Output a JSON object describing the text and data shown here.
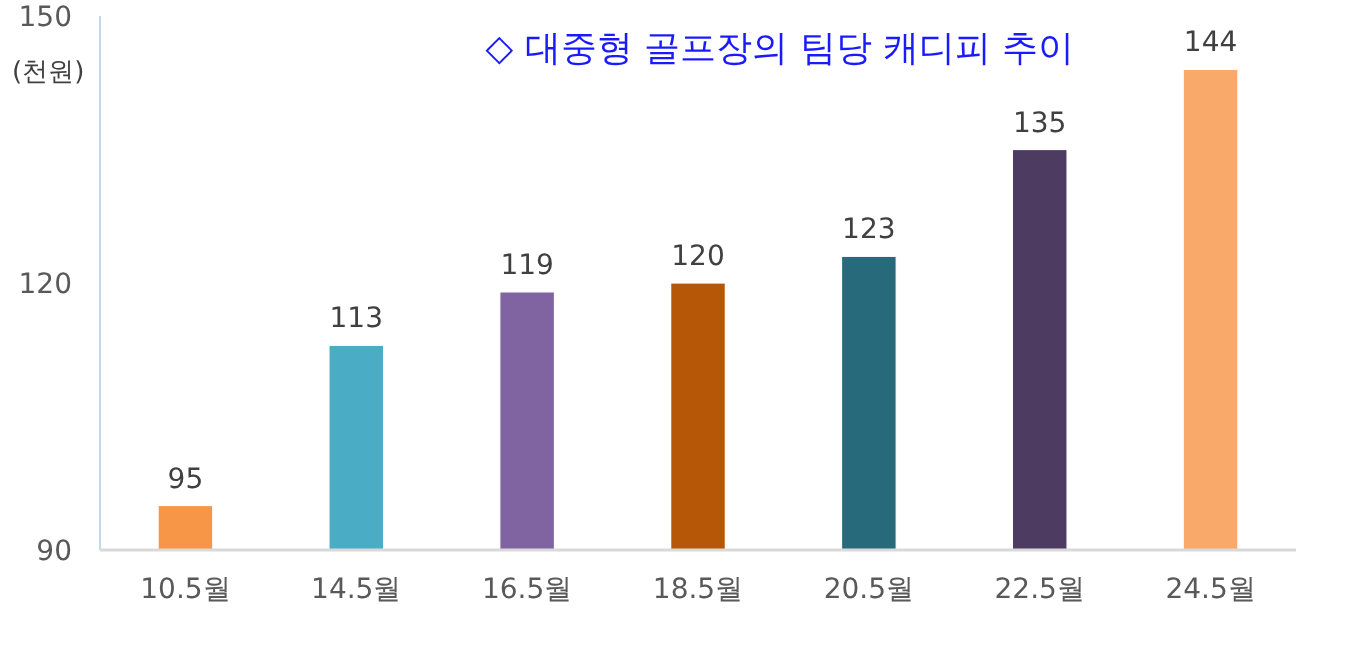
{
  "chart_data": {
    "type": "bar",
    "title": "◇ 대중형 골프장의 팀당 캐디피 추이",
    "ylabel": "(천원)",
    "categories": [
      "10.5월",
      "14.5월",
      "16.5월",
      "18.5월",
      "20.5월",
      "22.5월",
      "24.5월"
    ],
    "values": [
      95,
      113,
      119,
      120,
      123,
      135,
      144
    ],
    "colors": [
      "#f79646",
      "#4bacc6",
      "#8064a2",
      "#b65708",
      "#276a7c",
      "#4d3b62",
      "#f9aa6b"
    ],
    "ylim": [
      90,
      150
    ],
    "yticks": [
      90,
      120,
      150
    ],
    "data_labels": true,
    "grid": false
  }
}
